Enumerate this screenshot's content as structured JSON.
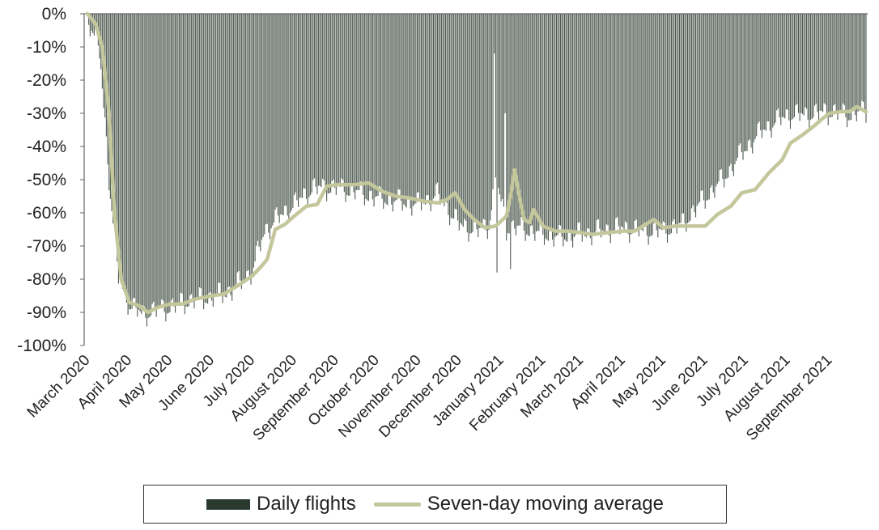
{
  "colors": {
    "bars": "#2b3a2e",
    "average": "#c4c79b",
    "axis": "#666666"
  },
  "legend": {
    "bars_label": "Daily flights",
    "avg_label": "Seven-day moving average",
    "placement": "bottom"
  },
  "chart_data": {
    "type": "bar",
    "title": "",
    "xlabel": "",
    "ylabel": "",
    "ylim": [
      -100,
      0
    ],
    "yticks": [
      "0%",
      "-10%",
      "-20%",
      "-30%",
      "-40%",
      "-50%",
      "-60%",
      "-70%",
      "-80%",
      "-90%",
      "-100%"
    ],
    "x_tick_labels": [
      "March 2020",
      "April 2020",
      "May 2020",
      "June 2020",
      "July 2020",
      "August 2020",
      "September 2020",
      "October 2020",
      "November 2020",
      "December 2020",
      "January 2021",
      "February 2021",
      "March 2021",
      "April 2021",
      "May 2021",
      "June 2021",
      "July 2021",
      "August 2021",
      "September 2021"
    ],
    "x_start": "2020-03-01",
    "x_end": "2021-09-28",
    "series": [
      {
        "name": "Daily flights",
        "type": "bar",
        "values_note": "one bar per day, values in percent change",
        "anchors": [
          [
            "2020-03-01",
            -1
          ],
          [
            "2020-03-10",
            -12
          ],
          [
            "2020-03-18",
            -55
          ],
          [
            "2020-03-24",
            -80
          ],
          [
            "2020-04-01",
            -88
          ],
          [
            "2020-04-10",
            -91
          ],
          [
            "2020-04-20",
            -90
          ],
          [
            "2020-05-01",
            -89
          ],
          [
            "2020-05-15",
            -87
          ],
          [
            "2020-06-01",
            -86
          ],
          [
            "2020-06-15",
            -84
          ],
          [
            "2020-07-01",
            -78
          ],
          [
            "2020-07-10",
            -66
          ],
          [
            "2020-07-20",
            -62
          ],
          [
            "2020-08-01",
            -58
          ],
          [
            "2020-08-15",
            -53
          ],
          [
            "2020-09-01",
            -53
          ],
          [
            "2020-09-15",
            -54
          ],
          [
            "2020-10-01",
            -56
          ],
          [
            "2020-10-15",
            -57
          ],
          [
            "2020-11-01",
            -58
          ],
          [
            "2020-11-15",
            -55
          ],
          [
            "2020-12-01",
            -64
          ],
          [
            "2020-12-15",
            -66
          ],
          [
            "2020-12-23",
            -64
          ],
          [
            "2020-12-28",
            -50
          ],
          [
            "2021-01-05",
            -65
          ],
          [
            "2021-01-15",
            -65
          ],
          [
            "2021-02-01",
            -67
          ],
          [
            "2021-02-15",
            -68
          ],
          [
            "2021-03-01",
            -67
          ],
          [
            "2021-03-15",
            -66
          ],
          [
            "2021-04-01",
            -65
          ],
          [
            "2021-04-15",
            -66
          ],
          [
            "2021-05-01",
            -66
          ],
          [
            "2021-05-15",
            -64
          ],
          [
            "2021-06-01",
            -56
          ],
          [
            "2021-06-15",
            -50
          ],
          [
            "2021-07-01",
            -41
          ],
          [
            "2021-07-15",
            -35
          ],
          [
            "2021-08-01",
            -31
          ],
          [
            "2021-08-15",
            -31
          ],
          [
            "2021-09-01",
            -30
          ],
          [
            "2021-09-15",
            -31
          ],
          [
            "2021-09-28",
            -30
          ]
        ],
        "spikes": [
          [
            "2020-12-27",
            -12
          ],
          [
            "2020-12-29",
            -78
          ],
          [
            "2021-01-08",
            -77
          ],
          [
            "2021-01-04",
            -30
          ]
        ]
      },
      {
        "name": "Seven-day moving average",
        "type": "line",
        "points": [
          [
            "2020-03-01",
            0
          ],
          [
            "2020-03-07",
            -3
          ],
          [
            "2020-03-12",
            -10
          ],
          [
            "2020-03-17",
            -30
          ],
          [
            "2020-03-21",
            -60
          ],
          [
            "2020-03-26",
            -80
          ],
          [
            "2020-04-01",
            -87
          ],
          [
            "2020-04-08",
            -88
          ],
          [
            "2020-04-15",
            -90
          ],
          [
            "2020-04-22",
            -88.5
          ],
          [
            "2020-05-01",
            -87.5
          ],
          [
            "2020-05-10",
            -87.5
          ],
          [
            "2020-05-20",
            -86
          ],
          [
            "2020-06-01",
            -85
          ],
          [
            "2020-06-10",
            -84.5
          ],
          [
            "2020-06-20",
            -82
          ],
          [
            "2020-07-01",
            -79
          ],
          [
            "2020-07-08",
            -76
          ],
          [
            "2020-07-12",
            -74
          ],
          [
            "2020-07-18",
            -65
          ],
          [
            "2020-07-25",
            -63.5
          ],
          [
            "2020-08-01",
            -61
          ],
          [
            "2020-08-10",
            -58
          ],
          [
            "2020-08-18",
            -57.5
          ],
          [
            "2020-08-25",
            -52
          ],
          [
            "2020-09-01",
            -51.5
          ],
          [
            "2020-09-15",
            -51.5
          ],
          [
            "2020-09-25",
            -51
          ],
          [
            "2020-10-05",
            -53.5
          ],
          [
            "2020-10-15",
            -55
          ],
          [
            "2020-10-25",
            -55.5
          ],
          [
            "2020-11-05",
            -56.5
          ],
          [
            "2020-11-15",
            -57
          ],
          [
            "2020-11-22",
            -56
          ],
          [
            "2020-11-28",
            -54
          ],
          [
            "2020-12-05",
            -59
          ],
          [
            "2020-12-12",
            -62
          ],
          [
            "2020-12-20",
            -64.5
          ],
          [
            "2020-12-28",
            -64
          ],
          [
            "2021-01-05",
            -61
          ],
          [
            "2021-01-08",
            -55
          ],
          [
            "2021-01-11",
            -47
          ],
          [
            "2021-01-15",
            -56
          ],
          [
            "2021-01-18",
            -62
          ],
          [
            "2021-01-22",
            -63
          ],
          [
            "2021-01-25",
            -59
          ],
          [
            "2021-02-01",
            -64
          ],
          [
            "2021-02-10",
            -65.5
          ],
          [
            "2021-02-20",
            -65.5
          ],
          [
            "2021-03-01",
            -66
          ],
          [
            "2021-03-10",
            -66.5
          ],
          [
            "2021-03-20",
            -66
          ],
          [
            "2021-04-01",
            -65.5
          ],
          [
            "2021-04-10",
            -65.5
          ],
          [
            "2021-04-18",
            -63.5
          ],
          [
            "2021-04-24",
            -62
          ],
          [
            "2021-05-01",
            -64.5
          ],
          [
            "2021-05-10",
            -64
          ],
          [
            "2021-05-20",
            -64
          ],
          [
            "2021-06-01",
            -64
          ],
          [
            "2021-06-10",
            -60.5
          ],
          [
            "2021-06-20",
            -58
          ],
          [
            "2021-06-28",
            -54
          ],
          [
            "2021-07-08",
            -53
          ],
          [
            "2021-07-18",
            -48
          ],
          [
            "2021-07-28",
            -44
          ],
          [
            "2021-08-03",
            -39
          ],
          [
            "2021-08-12",
            -36.5
          ],
          [
            "2021-08-20",
            -34
          ],
          [
            "2021-08-27",
            -31.5
          ],
          [
            "2021-09-01",
            -30
          ],
          [
            "2021-09-10",
            -29.5
          ],
          [
            "2021-09-16",
            -29.5
          ],
          [
            "2021-09-21",
            -28
          ],
          [
            "2021-09-28",
            -29.5
          ]
        ]
      }
    ],
    "grid": false
  }
}
